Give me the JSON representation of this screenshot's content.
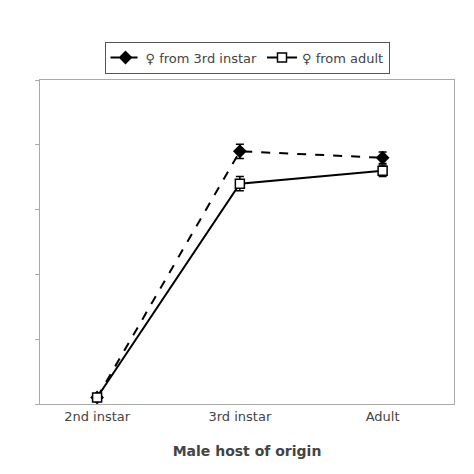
{
  "chart_data": {
    "type": "line",
    "xlabel": "Male host of origin",
    "categories": [
      "2nd instar",
      "3rd instar",
      "Adult"
    ],
    "series": [
      {
        "name": "♀ from 3rd instar",
        "color": "#000000",
        "marker": "diamond",
        "line_style": "dashed",
        "values": [
          0.02,
          0.78,
          0.76
        ],
        "yerr": [
          0.005,
          0.022,
          0.018
        ]
      },
      {
        "name": "♀ from adult",
        "color": "#000000",
        "marker": "square-open",
        "line_style": "solid",
        "values": [
          0.02,
          0.68,
          0.72
        ],
        "yerr": [
          0.005,
          0.022,
          0.018
        ]
      }
    ],
    "xlim": [
      -0.4,
      2.5
    ],
    "ylim": [
      0,
      1.0
    ],
    "yticks": [
      0,
      0.2,
      0.4,
      0.6,
      0.8,
      1.0
    ],
    "grid": false,
    "legend": "top",
    "tick_labels": "x"
  }
}
